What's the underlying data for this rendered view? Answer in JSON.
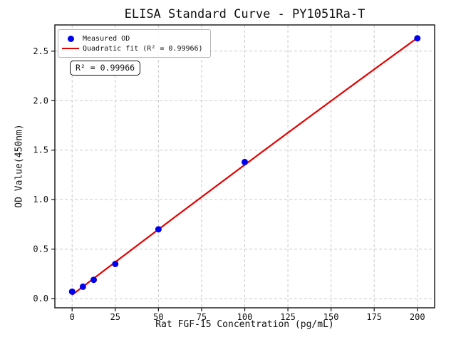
{
  "chart_data": {
    "type": "scatter",
    "title": "ELISA Standard Curve - PY1051Ra-T",
    "xlabel": "Rat FGF-15 Concentration (pg/mL)",
    "ylabel": "OD Value(450nm)",
    "xlim": [
      -10,
      210
    ],
    "ylim": [
      -0.093,
      2.765
    ],
    "xticks": [
      0,
      25,
      50,
      75,
      100,
      125,
      150,
      175,
      200
    ],
    "xtick_labels": [
      "0",
      "25",
      "50",
      "75",
      "100",
      "125",
      "150",
      "175",
      "200"
    ],
    "yticks": [
      0.0,
      0.5,
      1.0,
      1.5,
      2.0,
      2.5
    ],
    "ytick_labels": [
      "0.0",
      "0.5",
      "1.0",
      "1.5",
      "2.0",
      "2.5"
    ],
    "grid": {
      "show": true,
      "style": "dashed",
      "color": "#c9c9c9"
    },
    "legend": {
      "position": "upper left"
    },
    "series": [
      {
        "name": "Measured OD",
        "type": "scatter",
        "color": "#0000ee",
        "marker": "circle",
        "marker_size": 4.5,
        "x": [
          0,
          6.25,
          12.5,
          25,
          50,
          100,
          200
        ],
        "y": [
          0.07,
          0.12,
          0.19,
          0.35,
          0.7,
          1.38,
          2.63
        ]
      },
      {
        "name": "Quadratic fit (R² = 0.99966)",
        "type": "line",
        "color": "#e60000",
        "line_width": 2.2,
        "fit": {
          "kind": "quadratic",
          "coefficients": [
            0.0374,
            0.013309,
            -1.64e-06
          ],
          "x_range": [
            0,
            200
          ]
        }
      }
    ],
    "annotation": {
      "text": "R² = 0.99966",
      "r_squared": 0.99966
    }
  }
}
